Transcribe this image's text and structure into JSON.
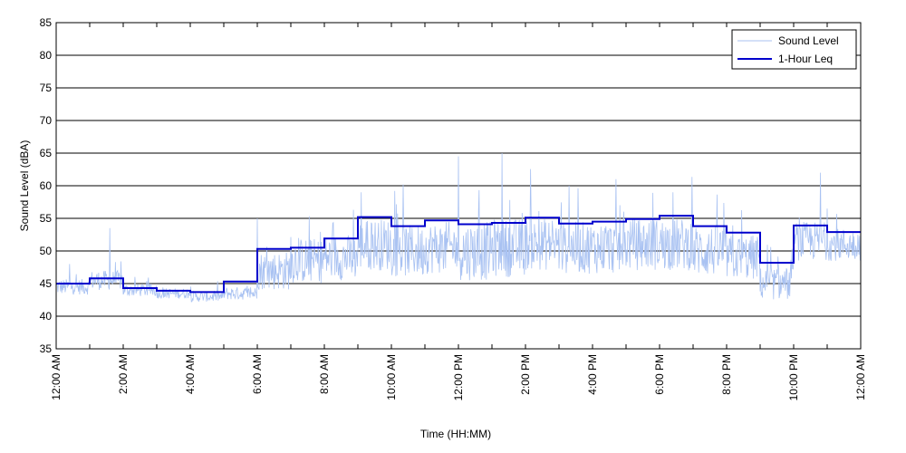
{
  "chart_data": {
    "type": "line",
    "title": "",
    "xlabel": "Time (HH:MM)",
    "ylabel": "Sound Level (dBA)",
    "xlim": [
      0,
      24
    ],
    "ylim": [
      35,
      85
    ],
    "yticks": [
      35,
      40,
      45,
      50,
      55,
      60,
      65,
      70,
      75,
      80,
      85
    ],
    "xticks": [
      0,
      1,
      2,
      3,
      4,
      5,
      6,
      7,
      8,
      9,
      10,
      11,
      12,
      13,
      14,
      15,
      16,
      17,
      18,
      19,
      20,
      21,
      22,
      23,
      24
    ],
    "xtick_labels": [
      "12:00 AM",
      "",
      "2:00 AM",
      "",
      "4:00 AM",
      "",
      "6:00 AM",
      "",
      "8:00 AM",
      "",
      "10:00 AM",
      "",
      "12:00 PM",
      "",
      "2:00 PM",
      "",
      "4:00 PM",
      "",
      "6:00 PM",
      "",
      "8:00 PM",
      "",
      "10:00 PM",
      "",
      "12:00 AM"
    ],
    "grid": "horizontal",
    "legend": {
      "placement": "top-right"
    },
    "series": [
      {
        "name": "Sound Level",
        "color": "#a9c2f2",
        "description_kind": "continuous",
        "hourly_base": [
          44.5,
          45.5,
          44.0,
          43.5,
          43.0,
          43.5,
          47.0,
          48.5,
          49.0,
          51.0,
          50.0,
          50.5,
          50.0,
          50.5,
          51.0,
          50.5,
          50.5,
          51.0,
          51.0,
          50.0,
          49.0,
          45.0,
          51.5,
          51.0
        ],
        "hourly_spread": [
          1.2,
          1.5,
          1.0,
          0.8,
          0.8,
          1.0,
          3.0,
          3.5,
          3.5,
          4.0,
          4.0,
          4.0,
          4.5,
          4.5,
          4.0,
          4.0,
          4.0,
          4.0,
          4.0,
          4.0,
          3.5,
          2.5,
          3.0,
          2.5
        ],
        "peaks": [
          [
            0.4,
            48
          ],
          [
            1.6,
            53.5
          ],
          [
            6.0,
            55
          ],
          [
            9.1,
            59
          ],
          [
            12.0,
            64.5
          ],
          [
            13.3,
            65
          ],
          [
            15.3,
            60
          ],
          [
            16.7,
            61
          ],
          [
            18.4,
            59
          ],
          [
            22.8,
            62
          ]
        ]
      },
      {
        "name": "1-Hour Leq",
        "color": "#0000cc",
        "x": [
          0,
          1,
          2,
          3,
          4,
          5,
          6,
          7,
          8,
          9,
          10,
          11,
          12,
          13,
          14,
          15,
          16,
          17,
          18,
          19,
          20,
          21,
          22,
          23
        ],
        "values": [
          45.0,
          45.8,
          44.3,
          43.9,
          43.7,
          45.3,
          50.3,
          50.5,
          51.9,
          55.2,
          53.8,
          54.7,
          54.1,
          54.3,
          55.1,
          54.2,
          54.5,
          54.9,
          55.4,
          53.8,
          52.8,
          48.2,
          53.9,
          52.9
        ]
      }
    ]
  }
}
